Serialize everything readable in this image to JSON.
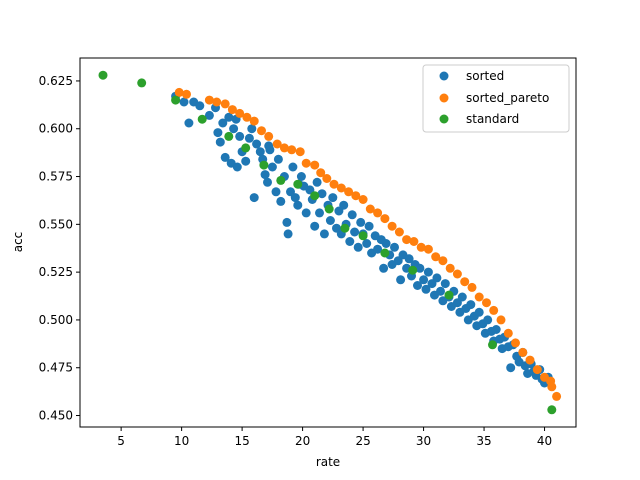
{
  "chart_data": {
    "type": "scatter",
    "title": "",
    "xlabel": "rate",
    "ylabel": "acc",
    "xlim": [
      1.6,
      42.6
    ],
    "ylim": [
      0.444,
      0.637
    ],
    "xticks": [
      5,
      10,
      15,
      20,
      25,
      30,
      35,
      40
    ],
    "yticks": [
      0.45,
      0.475,
      0.5,
      0.525,
      0.55,
      0.575,
      0.6,
      0.625
    ],
    "ytick_labels": [
      "0.450",
      "0.475",
      "0.500",
      "0.525",
      "0.550",
      "0.575",
      "0.600",
      "0.625"
    ],
    "grid": false,
    "legend_position": "top-right",
    "series": [
      {
        "name": "sorted",
        "color": "#1f77b4",
        "points": [
          [
            9.5,
            0.617
          ],
          [
            10.2,
            0.614
          ],
          [
            10.6,
            0.603
          ],
          [
            11.0,
            0.614
          ],
          [
            11.5,
            0.612
          ],
          [
            12.3,
            0.607
          ],
          [
            12.8,
            0.611
          ],
          [
            13.0,
            0.598
          ],
          [
            13.2,
            0.593
          ],
          [
            13.4,
            0.603
          ],
          [
            13.6,
            0.585
          ],
          [
            13.9,
            0.606
          ],
          [
            14.1,
            0.582
          ],
          [
            14.3,
            0.6
          ],
          [
            14.6,
            0.58
          ],
          [
            14.8,
            0.596
          ],
          [
            15.0,
            0.588
          ],
          [
            15.3,
            0.583
          ],
          [
            15.6,
            0.595
          ],
          [
            15.8,
            0.6
          ],
          [
            16.0,
            0.564
          ],
          [
            16.2,
            0.592
          ],
          [
            16.5,
            0.588
          ],
          [
            16.7,
            0.584
          ],
          [
            16.9,
            0.576
          ],
          [
            17.1,
            0.572
          ],
          [
            17.3,
            0.589
          ],
          [
            17.5,
            0.58
          ],
          [
            17.8,
            0.567
          ],
          [
            18.0,
            0.584
          ],
          [
            18.2,
            0.562
          ],
          [
            18.5,
            0.575
          ],
          [
            18.7,
            0.551
          ],
          [
            18.8,
            0.545
          ],
          [
            19.0,
            0.567
          ],
          [
            19.2,
            0.58
          ],
          [
            19.4,
            0.564
          ],
          [
            19.6,
            0.56
          ],
          [
            19.9,
            0.575
          ],
          [
            20.1,
            0.57
          ],
          [
            20.3,
            0.556
          ],
          [
            20.6,
            0.568
          ],
          [
            20.8,
            0.563
          ],
          [
            21.0,
            0.549
          ],
          [
            21.2,
            0.572
          ],
          [
            21.4,
            0.556
          ],
          [
            21.6,
            0.566
          ],
          [
            21.8,
            0.545
          ],
          [
            22.1,
            0.56
          ],
          [
            22.3,
            0.552
          ],
          [
            22.5,
            0.564
          ],
          [
            22.8,
            0.548
          ],
          [
            23.0,
            0.557
          ],
          [
            23.2,
            0.545
          ],
          [
            23.4,
            0.56
          ],
          [
            23.6,
            0.55
          ],
          [
            23.9,
            0.541
          ],
          [
            24.1,
            0.555
          ],
          [
            24.3,
            0.546
          ],
          [
            24.6,
            0.538
          ],
          [
            24.8,
            0.551
          ],
          [
            25.0,
            0.545
          ],
          [
            25.3,
            0.54
          ],
          [
            25.5,
            0.549
          ],
          [
            25.7,
            0.535
          ],
          [
            26.0,
            0.544
          ],
          [
            26.2,
            0.537
          ],
          [
            26.5,
            0.542
          ],
          [
            26.7,
            0.527
          ],
          [
            26.9,
            0.54
          ],
          [
            27.2,
            0.534
          ],
          [
            27.4,
            0.529
          ],
          [
            27.6,
            0.538
          ],
          [
            27.9,
            0.531
          ],
          [
            28.1,
            0.521
          ],
          [
            28.3,
            0.534
          ],
          [
            28.6,
            0.527
          ],
          [
            28.8,
            0.532
          ],
          [
            29.0,
            0.523
          ],
          [
            29.3,
            0.529
          ],
          [
            29.5,
            0.518
          ],
          [
            29.7,
            0.527
          ],
          [
            30.0,
            0.521
          ],
          [
            30.2,
            0.516
          ],
          [
            30.4,
            0.525
          ],
          [
            30.7,
            0.519
          ],
          [
            30.9,
            0.513
          ],
          [
            31.1,
            0.522
          ],
          [
            31.4,
            0.515
          ],
          [
            31.6,
            0.51
          ],
          [
            31.8,
            0.519
          ],
          [
            32.1,
            0.512
          ],
          [
            32.3,
            0.507
          ],
          [
            32.5,
            0.515
          ],
          [
            32.8,
            0.509
          ],
          [
            33.0,
            0.504
          ],
          [
            33.2,
            0.512
          ],
          [
            33.5,
            0.506
          ],
          [
            33.7,
            0.5
          ],
          [
            33.9,
            0.508
          ],
          [
            34.2,
            0.502
          ],
          [
            34.4,
            0.497
          ],
          [
            34.6,
            0.504
          ],
          [
            34.9,
            0.498
          ],
          [
            35.1,
            0.493
          ],
          [
            35.3,
            0.5
          ],
          [
            35.6,
            0.494
          ],
          [
            35.8,
            0.489
          ],
          [
            36.0,
            0.495
          ],
          [
            36.3,
            0.49
          ],
          [
            36.5,
            0.485
          ],
          [
            36.7,
            0.491
          ],
          [
            37.0,
            0.486
          ],
          [
            37.2,
            0.475
          ],
          [
            37.4,
            0.487
          ],
          [
            37.7,
            0.481
          ],
          [
            37.9,
            0.478
          ],
          [
            38.2,
            0.483
          ],
          [
            38.4,
            0.476
          ],
          [
            38.6,
            0.472
          ],
          [
            38.9,
            0.477
          ],
          [
            39.1,
            0.473
          ],
          [
            39.3,
            0.471
          ],
          [
            39.6,
            0.474
          ],
          [
            39.8,
            0.469
          ],
          [
            40.0,
            0.467
          ],
          [
            40.3,
            0.47
          ],
          [
            19.7,
            0.571
          ],
          [
            17.2,
            0.591
          ],
          [
            14.5,
            0.605
          ]
        ]
      },
      {
        "name": "sorted_pareto",
        "color": "#ff7f0e",
        "points": [
          [
            9.8,
            0.619
          ],
          [
            10.4,
            0.618
          ],
          [
            12.3,
            0.615
          ],
          [
            12.9,
            0.614
          ],
          [
            13.6,
            0.613
          ],
          [
            14.2,
            0.61
          ],
          [
            14.8,
            0.608
          ],
          [
            15.4,
            0.606
          ],
          [
            16.0,
            0.604
          ],
          [
            16.6,
            0.599
          ],
          [
            17.2,
            0.596
          ],
          [
            17.9,
            0.592
          ],
          [
            18.5,
            0.59
          ],
          [
            19.1,
            0.589
          ],
          [
            19.8,
            0.588
          ],
          [
            20.3,
            0.582
          ],
          [
            21.0,
            0.581
          ],
          [
            21.5,
            0.577
          ],
          [
            22.0,
            0.574
          ],
          [
            22.6,
            0.571
          ],
          [
            23.2,
            0.569
          ],
          [
            23.8,
            0.567
          ],
          [
            24.4,
            0.565
          ],
          [
            25.0,
            0.563
          ],
          [
            25.6,
            0.558
          ],
          [
            26.2,
            0.556
          ],
          [
            26.8,
            0.553
          ],
          [
            27.4,
            0.549
          ],
          [
            28.0,
            0.546
          ],
          [
            28.6,
            0.542
          ],
          [
            29.2,
            0.541
          ],
          [
            29.8,
            0.538
          ],
          [
            30.4,
            0.537
          ],
          [
            31.0,
            0.533
          ],
          [
            31.6,
            0.531
          ],
          [
            32.2,
            0.527
          ],
          [
            32.8,
            0.524
          ],
          [
            33.4,
            0.52
          ],
          [
            34.0,
            0.517
          ],
          [
            34.6,
            0.512
          ],
          [
            35.2,
            0.509
          ],
          [
            35.8,
            0.505
          ],
          [
            36.4,
            0.5
          ],
          [
            37.0,
            0.493
          ],
          [
            37.6,
            0.488
          ],
          [
            38.2,
            0.483
          ],
          [
            38.8,
            0.479
          ],
          [
            39.4,
            0.474
          ],
          [
            40.0,
            0.47
          ],
          [
            40.5,
            0.468
          ],
          [
            40.6,
            0.465
          ],
          [
            41.0,
            0.46
          ]
        ]
      },
      {
        "name": "standard",
        "color": "#2ca02c",
        "points": [
          [
            3.5,
            0.628
          ],
          [
            6.7,
            0.624
          ],
          [
            9.5,
            0.615
          ],
          [
            11.7,
            0.605
          ],
          [
            13.9,
            0.596
          ],
          [
            15.3,
            0.59
          ],
          [
            16.8,
            0.581
          ],
          [
            18.2,
            0.573
          ],
          [
            19.6,
            0.571
          ],
          [
            21.0,
            0.565
          ],
          [
            22.2,
            0.558
          ],
          [
            23.5,
            0.548
          ],
          [
            25.0,
            0.544
          ],
          [
            26.8,
            0.535
          ],
          [
            29.1,
            0.526
          ],
          [
            32.1,
            0.513
          ],
          [
            35.7,
            0.487
          ],
          [
            40.6,
            0.453
          ]
        ]
      }
    ]
  }
}
